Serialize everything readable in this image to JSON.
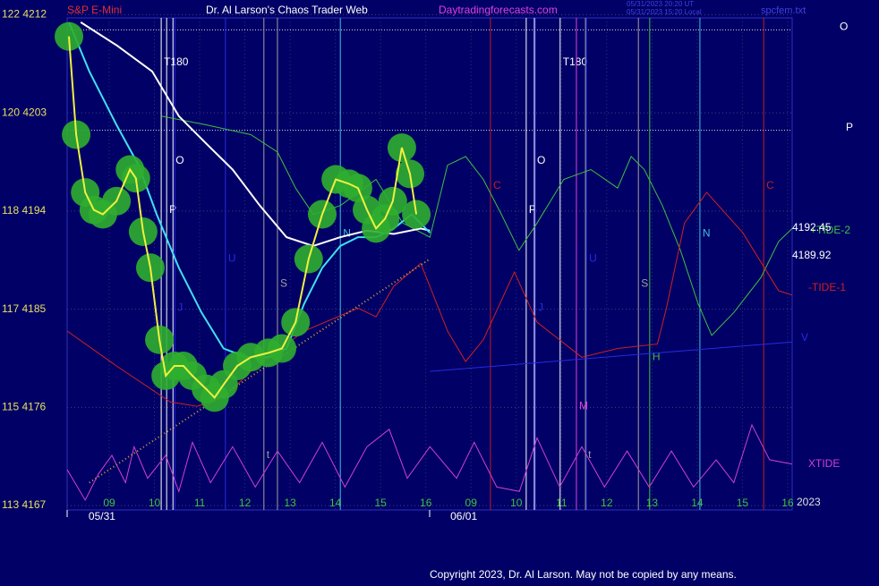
{
  "chart_data": {
    "type": "line",
    "title": "Dr. Al Larson's Chaos Trader Web",
    "symbol": "S&P E-Mini",
    "site": "Daytradingforecasts.com",
    "file": "spcfem.txt",
    "stamps": [
      "05/31/2023 20:20 UT",
      "05/31/2023 15:20 Local"
    ],
    "copyright": "Copyright 2023, Dr. Al Larson. May not be copied by any means.",
    "year": "2023",
    "grid": true,
    "xlim": [
      0.07,
      16.1
    ],
    "ylim": [
      4166.6,
      4211.7
    ],
    "xticks": [
      {
        "value": 1,
        "label": "09"
      },
      {
        "value": 2,
        "label": "10"
      },
      {
        "value": 3,
        "label": "11"
      },
      {
        "value": 4,
        "label": "12"
      },
      {
        "value": 5,
        "label": "13"
      },
      {
        "value": 6,
        "label": "14"
      },
      {
        "value": 7,
        "label": "15"
      },
      {
        "value": 8,
        "label": "16"
      },
      {
        "value": 9,
        "label": "09"
      },
      {
        "value": 10,
        "label": "10"
      },
      {
        "value": 11,
        "label": "11"
      },
      {
        "value": 12,
        "label": "12"
      },
      {
        "value": 13,
        "label": "13"
      },
      {
        "value": 14,
        "label": "14"
      },
      {
        "value": 15,
        "label": "15"
      },
      {
        "value": 16,
        "label": "16"
      }
    ],
    "xdates": [
      {
        "value": 0.84,
        "label": "05/31"
      },
      {
        "value": 8.84,
        "label": "06/01"
      }
    ],
    "yticks": [
      {
        "value": 4167,
        "label": "113 4167"
      },
      {
        "value": 4176,
        "label": "115 4176"
      },
      {
        "value": 4185,
        "label": "117 4185"
      },
      {
        "value": 4194,
        "label": "118 4194"
      },
      {
        "value": 4203,
        "label": "120 4203"
      },
      {
        "value": 4212,
        "label": "122 4212"
      }
    ],
    "levels": [
      {
        "value": 4210.6,
        "label": "O"
      },
      {
        "value": 4201.4,
        "label": "P"
      }
    ],
    "last_values": [
      4192.45,
      4189.92
    ],
    "markers": [
      {
        "label": "T180",
        "x": 2.15,
        "y": 4207.6,
        "color": "#ffffff"
      },
      {
        "label": "O",
        "x": 2.41,
        "y": 4198.6,
        "color": "#ffffff"
      },
      {
        "label": "P",
        "x": 2.27,
        "y": 4194.1,
        "color": "#ffffff"
      },
      {
        "label": "U",
        "x": 3.57,
        "y": 4189.6,
        "color": "#2a2ae0"
      },
      {
        "label": "J",
        "x": 2.45,
        "y": 4185.1,
        "color": "#2a2ae0"
      },
      {
        "label": "S",
        "x": 4.72,
        "y": 4187.3,
        "color": "#a0a0a0"
      },
      {
        "label": "N",
        "x": 6.11,
        "y": 4191.9,
        "color": "#40c0e0"
      },
      {
        "label": "t",
        "x": 4.42,
        "y": 4171.6,
        "color": "#a0a0a0"
      },
      {
        "label": "T180",
        "x": 10.97,
        "y": 4207.6,
        "color": "#ffffff"
      },
      {
        "label": "O",
        "x": 10.4,
        "y": 4198.6,
        "color": "#ffffff"
      },
      {
        "label": "P",
        "x": 10.22,
        "y": 4194.1,
        "color": "#ffffff"
      },
      {
        "label": "C",
        "x": 9.43,
        "y": 4196.3,
        "color": "#c02020"
      },
      {
        "label": "U",
        "x": 11.55,
        "y": 4189.6,
        "color": "#2a2ae0"
      },
      {
        "label": "J",
        "x": 10.42,
        "y": 4185.1,
        "color": "#2a2ae0"
      },
      {
        "label": "M",
        "x": 11.33,
        "y": 4176.1,
        "color": "#e040e0"
      },
      {
        "label": "S",
        "x": 12.7,
        "y": 4187.3,
        "color": "#a0a0a0"
      },
      {
        "label": "H",
        "x": 12.95,
        "y": 4180.6,
        "color": "#40c040"
      },
      {
        "label": "N",
        "x": 14.06,
        "y": 4191.9,
        "color": "#40c0e0"
      },
      {
        "label": "C",
        "x": 15.47,
        "y": 4196.3,
        "color": "#c02020"
      },
      {
        "label": "t",
        "x": 11.53,
        "y": 4171.6,
        "color": "#a0a0a0"
      }
    ],
    "series": [
      {
        "name": "+TIDE-2",
        "color": "#40c040",
        "x": [
          2.15,
          3.14,
          4.13,
          4.72,
          5.12,
          5.51,
          6.11,
          6.9,
          7.49,
          8.09,
          8.48,
          8.88,
          9.27,
          9.67,
          10.06,
          10.46,
          11.05,
          11.65,
          12.24,
          12.54,
          12.83,
          13.23,
          13.63,
          14.02,
          14.32,
          14.81,
          15.41,
          15.8,
          16.1
        ],
        "values": [
          4202.7,
          4201.9,
          4201.0,
          4199.4,
          4196.1,
          4193.7,
          4194.5,
          4196.9,
          4192.9,
          4191.6,
          4198.2,
          4199.0,
          4196.9,
          4193.7,
          4190.4,
          4192.9,
          4196.9,
          4197.8,
          4196.1,
          4199.0,
          4197.8,
          4194.5,
          4190.4,
          4185.5,
          4182.6,
          4184.7,
          4187.9,
          4191.2,
          4192.4
        ]
      },
      {
        "name": "-TIDE-1",
        "color": "#d02020",
        "x": [
          0.07,
          1.16,
          2.35,
          2.94,
          3.53,
          4.13,
          5.31,
          6.5,
          6.9,
          7.29,
          7.89,
          8.48,
          8.88,
          9.27,
          9.96,
          10.46,
          11.45,
          12.24,
          13.12,
          13.32,
          13.72,
          14.21,
          15.01,
          15.8,
          16.1
        ],
        "values": [
          4183.0,
          4179.8,
          4176.5,
          4176.1,
          4176.9,
          4179.3,
          4183.0,
          4185.1,
          4184.3,
          4187.1,
          4189.2,
          4183.0,
          4180.2,
          4182.2,
          4188.4,
          4183.8,
          4180.6,
          4181.4,
          4181.8,
          4185.1,
          4192.9,
          4195.7,
          4192.0,
          4186.7,
          4186.3
        ]
      },
      {
        "name": "V",
        "color": "#2a2ae0",
        "x": [
          8.09,
          16.1
        ],
        "values": [
          4179.3,
          4182.0
        ]
      },
      {
        "name": "XTIDE",
        "color": "#d040d0",
        "x": [
          0.07,
          0.47,
          0.76,
          1.06,
          1.36,
          1.55,
          1.85,
          2.25,
          2.54,
          2.84,
          3.24,
          3.73,
          4.23,
          4.72,
          5.21,
          5.71,
          6.21,
          6.7,
          7.19,
          7.59,
          8.09,
          8.68,
          9.07,
          9.57,
          10.07,
          10.46,
          10.96,
          11.45,
          11.95,
          12.45,
          12.94,
          13.43,
          13.92,
          14.42,
          14.81,
          15.21,
          15.6,
          16.1
        ],
        "values": [
          4170.3,
          4167.5,
          4169.9,
          4171.6,
          4169.1,
          4172.4,
          4169.5,
          4171.6,
          4168.3,
          4172.8,
          4169.1,
          4172.4,
          4168.7,
          4172.0,
          4169.1,
          4172.8,
          4168.7,
          4172.4,
          4174.0,
          4169.5,
          4172.4,
          4169.5,
          4172.8,
          4168.7,
          4168.3,
          4173.2,
          4168.7,
          4172.4,
          4168.7,
          4172.0,
          4168.7,
          4172.0,
          4168.7,
          4171.2,
          4169.1,
          4174.4,
          4171.2,
          4170.8
        ]
      },
      {
        "color": "#d0a040",
        "x": [
          0.56,
          8.09
        ],
        "values": [
          4169.1,
          4189.6
        ]
      },
      {
        "color": "#ffffff",
        "x": [
          0.37,
          1.16,
          1.95,
          2.54,
          3.14,
          3.73,
          4.33,
          4.92,
          5.51,
          6.11,
          6.7,
          7.29,
          7.89,
          8.09
        ],
        "values": [
          4211.3,
          4209.2,
          4206.8,
          4202.7,
          4200.2,
          4197.8,
          4194.5,
          4191.6,
          4190.8,
          4191.6,
          4192.2,
          4191.9,
          4192.4,
          4192.2
        ]
      },
      {
        "color": "#40e0f0",
        "x": [
          0.11,
          0.56,
          1.16,
          1.65,
          2.05,
          2.54,
          3.04,
          3.53,
          4.03,
          4.52,
          4.92,
          5.31,
          5.71,
          6.11,
          6.5,
          6.9,
          7.29,
          7.69,
          8.09
        ],
        "values": [
          4211.3,
          4206.8,
          4201.9,
          4198.2,
          4193.7,
          4188.8,
          4184.7,
          4181.4,
          4180.6,
          4180.6,
          4181.4,
          4185.5,
          4188.8,
          4190.8,
          4191.6,
          4191.6,
          4192.4,
          4193.7,
          4192.0
        ]
      },
      {
        "color": "#f0f040",
        "glow": "#2fae2f",
        "x": [
          0.11,
          0.27,
          0.47,
          0.66,
          0.86,
          1.16,
          1.46,
          1.59,
          1.75,
          1.91,
          2.11,
          2.25,
          2.44,
          2.64,
          2.84,
          3.14,
          3.33,
          3.53,
          3.83,
          4.13,
          4.52,
          4.82,
          5.12,
          5.41,
          5.71,
          6.01,
          6.3,
          6.5,
          6.7,
          6.9,
          7.1,
          7.27,
          7.47,
          7.65,
          7.79
        ],
        "values": [
          4210.0,
          4201.0,
          4195.7,
          4194.1,
          4193.7,
          4194.9,
          4197.8,
          4197.0,
          4192.1,
          4188.8,
          4182.2,
          4178.9,
          4179.8,
          4179.8,
          4178.9,
          4177.7,
          4176.9,
          4178.1,
          4179.8,
          4180.6,
          4181.0,
          4181.4,
          4183.8,
          4189.6,
          4193.7,
          4196.9,
          4196.5,
          4196.1,
          4194.1,
          4192.4,
          4193.3,
          4194.9,
          4199.8,
          4197.4,
          4193.7
        ]
      }
    ]
  }
}
